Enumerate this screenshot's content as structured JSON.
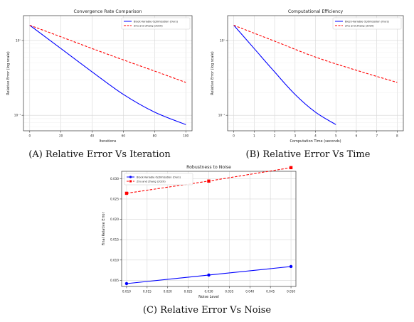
{
  "chart_data": [
    {
      "type": "line",
      "title": "Convergence Rate Comparison",
      "xlabel": "Iterations",
      "ylabel": "Relative Error (log scale)",
      "caption": "(A) Relative Error Vs Iteration",
      "yscale": "log",
      "grid": true,
      "legend_position": "top-right",
      "xlim": [
        -4,
        104
      ],
      "ylim": [
        0.062,
        2.15
      ],
      "xticks": [
        "0",
        "20",
        "40",
        "60",
        "80",
        "100"
      ],
      "yticks": [
        {
          "value": 1,
          "label": "10⁰"
        },
        {
          "value": 0.1,
          "label": "10⁻¹"
        }
      ],
      "x": [
        0,
        20,
        40,
        60,
        80,
        100
      ],
      "series": [
        {
          "name": "Block-Variable Optimization (Ours)",
          "color": "#0000ff",
          "style": "solid",
          "values": [
            1.6,
            0.78,
            0.38,
            0.19,
            0.11,
            0.075
          ]
        },
        {
          "name": "Zhu and Zhang (2020)",
          "color": "#ff0000",
          "style": "dashed",
          "values": [
            1.6,
            1.12,
            0.78,
            0.55,
            0.39,
            0.275
          ]
        }
      ]
    },
    {
      "type": "line",
      "title": "Computational Efficiency",
      "xlabel": "Computation Time (seconds)",
      "ylabel": "Relative Error (log scale)",
      "caption": "(B) Relative Error Vs Time",
      "yscale": "log",
      "grid": true,
      "legend_position": "top-right",
      "xlim": [
        -0.3,
        8.3
      ],
      "ylim": [
        0.062,
        2.15
      ],
      "xticks": [
        "0",
        "1",
        "2",
        "3",
        "4",
        "5",
        "6",
        "7",
        "8"
      ],
      "yticks": [
        {
          "value": 1,
          "label": "10⁰"
        },
        {
          "value": 0.1,
          "label": "10⁻¹"
        }
      ],
      "series": [
        {
          "name": "Block-Variable Optimization (Ours)",
          "color": "#0000ff",
          "style": "solid",
          "x": [
            0,
            1,
            2,
            3,
            4,
            5
          ],
          "values": [
            1.6,
            0.78,
            0.38,
            0.19,
            0.11,
            0.075
          ]
        },
        {
          "name": "Zhu and Zhang (2020)",
          "color": "#ff0000",
          "style": "dashed",
          "x": [
            0,
            2,
            4,
            6,
            8
          ],
          "values": [
            1.6,
            0.98,
            0.6,
            0.4,
            0.275
          ]
        }
      ]
    },
    {
      "type": "line",
      "title": "Robustness to Noise",
      "xlabel": "Noise Level",
      "ylabel": "Final Relative Error",
      "caption": "(C) Relative Error Vs Noise",
      "grid": true,
      "legend_position": "top-left",
      "xlim": [
        0.0088,
        0.0512
      ],
      "ylim": [
        0.0035,
        0.0318
      ],
      "xticks": [
        "0.010",
        "0.015",
        "0.020",
        "0.025",
        "0.030",
        "0.035",
        "0.040",
        "0.045",
        "0.050"
      ],
      "yticks": [
        "0.005",
        "0.010",
        "0.015",
        "0.020",
        "0.025",
        "0.030"
      ],
      "x": [
        0.01,
        0.03,
        0.05
      ],
      "series": [
        {
          "name": "Block-Variable Optimization (Ours)",
          "color": "#0000ff",
          "style": "solid",
          "marker": "circle",
          "values": [
            0.0042,
            0.0063,
            0.0084
          ]
        },
        {
          "name": "Zhu and Zhang (2020)",
          "color": "#ff0000",
          "style": "dashed",
          "marker": "square",
          "values": [
            0.0264,
            0.0294,
            0.0327
          ]
        }
      ]
    }
  ]
}
